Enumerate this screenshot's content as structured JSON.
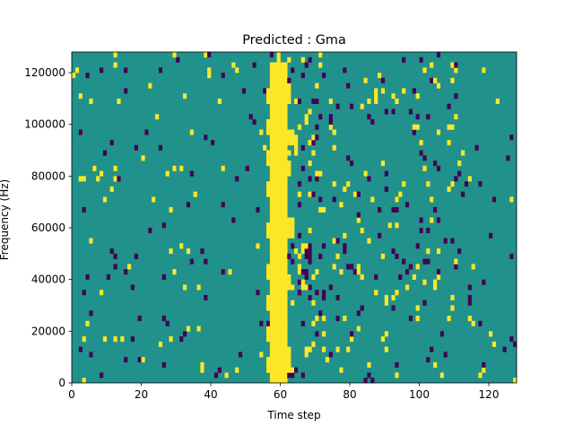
{
  "chart_data": {
    "type": "heatmap",
    "title": "Predicted : Gma",
    "xlabel": "Time step",
    "ylabel": "Frequency (Hz)",
    "xlim": [
      0,
      128
    ],
    "ylim": [
      0,
      128000
    ],
    "x_ticks": [
      0,
      20,
      40,
      60,
      80,
      100,
      120
    ],
    "x_tick_labels": [
      "0",
      "20",
      "40",
      "60",
      "80",
      "100",
      "120"
    ],
    "y_ticks": [
      0,
      20000,
      40000,
      60000,
      80000,
      100000,
      120000
    ],
    "y_tick_labels": [
      "0",
      "20000",
      "40000",
      "60000",
      "80000",
      "100000",
      "120000"
    ],
    "n_time_steps": 128,
    "n_freq_bins": 64,
    "colormap": {
      "low": "#440154",
      "mid": "#21918c",
      "high": "#fde725"
    },
    "background_level": "mid",
    "high_runs": [
      [
        57,
        0,
        61
      ],
      [
        58,
        0,
        61
      ],
      [
        59,
        0,
        61
      ],
      [
        60,
        0,
        61
      ],
      [
        61,
        0,
        61
      ],
      [
        56,
        2,
        4
      ],
      [
        56,
        8,
        10
      ],
      [
        56,
        14,
        16
      ],
      [
        56,
        20,
        22
      ],
      [
        56,
        28,
        30
      ],
      [
        56,
        36,
        38
      ],
      [
        56,
        42,
        44
      ],
      [
        56,
        48,
        50
      ],
      [
        56,
        54,
        56
      ],
      [
        62,
        2,
        6
      ],
      [
        62,
        18,
        20
      ],
      [
        62,
        28,
        31
      ],
      [
        62,
        40,
        42
      ],
      [
        62,
        46,
        48
      ],
      [
        62,
        54,
        57
      ],
      [
        63,
        28,
        31
      ],
      [
        63,
        46,
        48
      ],
      [
        64,
        44,
        47
      ],
      [
        60,
        66,
        64
      ],
      [
        59,
        62,
        63
      ],
      [
        66,
        25,
        26
      ],
      [
        67,
        25,
        26
      ],
      [
        68,
        25,
        26
      ]
    ],
    "low_runs": [
      [
        57,
        63,
        64
      ],
      [
        67,
        24,
        25
      ],
      [
        68,
        23,
        26
      ]
    ],
    "scatter_seed": 7
  }
}
